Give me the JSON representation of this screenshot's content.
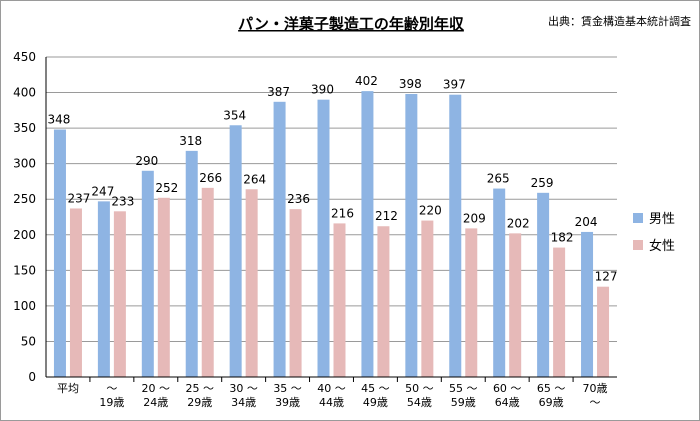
{
  "chart_data": {
    "type": "bar",
    "title": "パン・洋菓子製造工の年齢別年収",
    "source": "出典：賃金構造基本統計調査",
    "ylim": [
      0,
      450
    ],
    "yticks": [
      0,
      50,
      100,
      150,
      200,
      250,
      300,
      350,
      400,
      450
    ],
    "grid": true,
    "legend_position": "right",
    "categories": [
      [
        "平均"
      ],
      [
        "〜",
        "19歳"
      ],
      [
        "20 〜",
        "24歳"
      ],
      [
        "25 〜",
        "29歳"
      ],
      [
        "30 〜",
        "34歳"
      ],
      [
        "35 〜",
        "39歳"
      ],
      [
        "40 〜",
        "44歳"
      ],
      [
        "45 〜",
        "49歳"
      ],
      [
        "50 〜",
        "54歳"
      ],
      [
        "55 〜",
        "59歳"
      ],
      [
        "60 〜",
        "64歳"
      ],
      [
        "65 〜",
        "69歳"
      ],
      [
        "70歳",
        "〜"
      ]
    ],
    "series": [
      {
        "name": "男性",
        "color": "#8eb4e3",
        "values": [
          348,
          247,
          290,
          318,
          354,
          387,
          390,
          402,
          398,
          397,
          265,
          259,
          204
        ]
      },
      {
        "name": "女性",
        "color": "#e6b9b8",
        "values": [
          237,
          233,
          252,
          266,
          264,
          236,
          216,
          212,
          220,
          209,
          202,
          182,
          127
        ]
      }
    ]
  }
}
